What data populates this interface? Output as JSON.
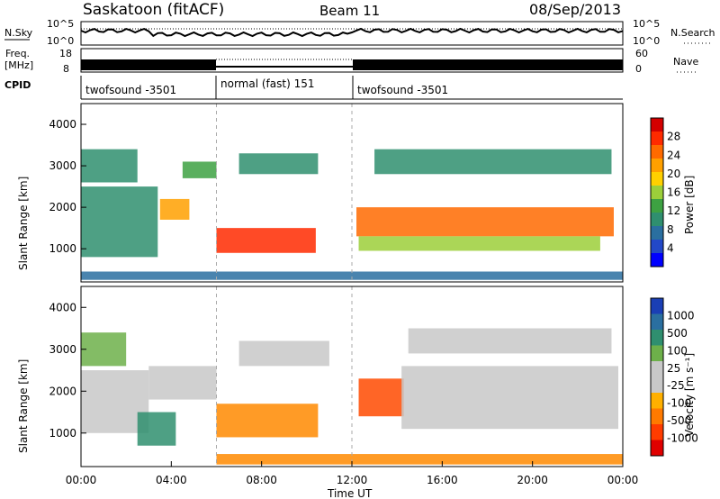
{
  "header": {
    "station": "Saskatoon (fitACF)",
    "beam": "Beam 11",
    "date": "08/Sep/2013"
  },
  "top_panels": {
    "nsky": {
      "label": "N.Sky",
      "ticks": [
        "10^5",
        "10^0"
      ],
      "right_label": "N.Search",
      "right_ticks": [
        "10^5",
        "10^0"
      ]
    },
    "freq": {
      "label_line1": "Freq.",
      "label_line2": "[MHz]",
      "ticks": [
        "18",
        "8"
      ],
      "right_label": "Nave",
      "right_ticks": [
        "60",
        "0"
      ]
    },
    "cpid": {
      "label": "CPID",
      "segments": [
        {
          "name": "twofsound -3501",
          "start_hour": 0,
          "end_hour": 6
        },
        {
          "name": "normal (fast) 151",
          "start_hour": 6,
          "end_hour": 12
        },
        {
          "name": "twofsound -3501",
          "start_hour": 12,
          "end_hour": 24
        }
      ]
    }
  },
  "power_panel": {
    "ylabel": "Slant Range [km]",
    "colorbar_label": "Power [dB]",
    "colorbar_ticks": [
      "28",
      "24",
      "20",
      "16",
      "12",
      "8",
      "4"
    ],
    "colorbar_colors": [
      "#d40000",
      "#ff2a00",
      "#ff6a00",
      "#ffa000",
      "#ffd000",
      "#9ccf3a",
      "#3da142",
      "#2f8f6f",
      "#2a6fa0",
      "#2248c8",
      "#0000ff"
    ]
  },
  "velocity_panel": {
    "ylabel": "Slant Range [km]",
    "colorbar_label": "Velocity [m s⁻¹]",
    "colorbar_ticks": [
      "1000",
      "500",
      "100",
      "25",
      "-25",
      "-100",
      "-500",
      "-1000"
    ],
    "colorbar_colors": [
      "#1a3fb5",
      "#2a6fa0",
      "#2f8f6f",
      "#6db04a",
      "#c8c8c8",
      "#c8c8c8",
      "#ffb000",
      "#ff7a00",
      "#ff3c00",
      "#e00000"
    ]
  },
  "xaxis": {
    "label": "Time UT",
    "ticks": [
      "00:00",
      "04:00",
      "08:00",
      "12:00",
      "16:00",
      "20:00",
      "00:00"
    ]
  },
  "chart_data": [
    {
      "type": "heatmap",
      "title": "Power",
      "xlabel": "Time UT",
      "ylabel": "Slant Range [km]",
      "xlim": [
        0,
        24
      ],
      "ylim": [
        200,
        4500
      ],
      "yticks": [
        1000,
        2000,
        3000,
        4000
      ],
      "colorbar": {
        "label": "Power [dB]",
        "range": [
          0,
          30
        ],
        "ticks": [
          4,
          8,
          12,
          16,
          20,
          24,
          28
        ]
      },
      "regions": [
        {
          "t0": 0.0,
          "t1": 3.4,
          "r0": 800,
          "r1": 2500,
          "level": 10
        },
        {
          "t0": 0.0,
          "t1": 2.5,
          "r0": 2600,
          "r1": 3400,
          "level": 8
        },
        {
          "t0": 3.5,
          "t1": 4.8,
          "r0": 1700,
          "r1": 2200,
          "level": 22
        },
        {
          "t0": 4.5,
          "t1": 6.0,
          "r0": 2700,
          "r1": 3100,
          "level": 12
        },
        {
          "t0": 6.0,
          "t1": 10.4,
          "r0": 900,
          "r1": 1500,
          "level": 27
        },
        {
          "t0": 7.0,
          "t1": 10.5,
          "r0": 2800,
          "r1": 3300,
          "level": 10
        },
        {
          "t0": 12.2,
          "t1": 23.6,
          "r0": 1300,
          "r1": 2000,
          "level": 24
        },
        {
          "t0": 12.3,
          "t1": 23.0,
          "r0": 950,
          "r1": 1300,
          "level": 14
        },
        {
          "t0": 13.0,
          "t1": 23.5,
          "r0": 2800,
          "r1": 3400,
          "level": 8
        },
        {
          "t0": 0.0,
          "t1": 24.0,
          "r0": 250,
          "r1": 450,
          "level": 6
        }
      ]
    },
    {
      "type": "heatmap",
      "title": "Velocity",
      "xlabel": "Time UT",
      "ylabel": "Slant Range [km]",
      "xlim": [
        0,
        24
      ],
      "ylim": [
        200,
        4500
      ],
      "yticks": [
        1000,
        2000,
        3000,
        4000
      ],
      "colorbar": {
        "label": "Velocity [m s⁻¹]",
        "ticks": [
          1000,
          500,
          100,
          25,
          -25,
          -100,
          -500,
          -1000
        ]
      },
      "regions": [
        {
          "t0": 0.0,
          "t1": 3.0,
          "r0": 1000,
          "r1": 2500,
          "velocity": 0
        },
        {
          "t0": 0.0,
          "t1": 2.0,
          "r0": 2600,
          "r1": 3400,
          "velocity": 50
        },
        {
          "t0": 2.5,
          "t1": 4.2,
          "r0": 700,
          "r1": 1500,
          "velocity": 300
        },
        {
          "t0": 3.0,
          "t1": 6.0,
          "r0": 1800,
          "r1": 2600,
          "velocity": 0
        },
        {
          "t0": 6.0,
          "t1": 10.5,
          "r0": 900,
          "r1": 1700,
          "velocity": -150
        },
        {
          "t0": 7.0,
          "t1": 11.0,
          "r0": 2600,
          "r1": 3200,
          "velocity": 0
        },
        {
          "t0": 12.3,
          "t1": 14.3,
          "r0": 1400,
          "r1": 2300,
          "velocity": -700
        },
        {
          "t0": 14.2,
          "t1": 23.8,
          "r0": 1100,
          "r1": 2600,
          "velocity": 0
        },
        {
          "t0": 14.5,
          "t1": 23.5,
          "r0": 2900,
          "r1": 3500,
          "velocity": 0
        },
        {
          "t0": 6.0,
          "t1": 24.0,
          "r0": 250,
          "r1": 500,
          "velocity": -200
        }
      ]
    }
  ]
}
